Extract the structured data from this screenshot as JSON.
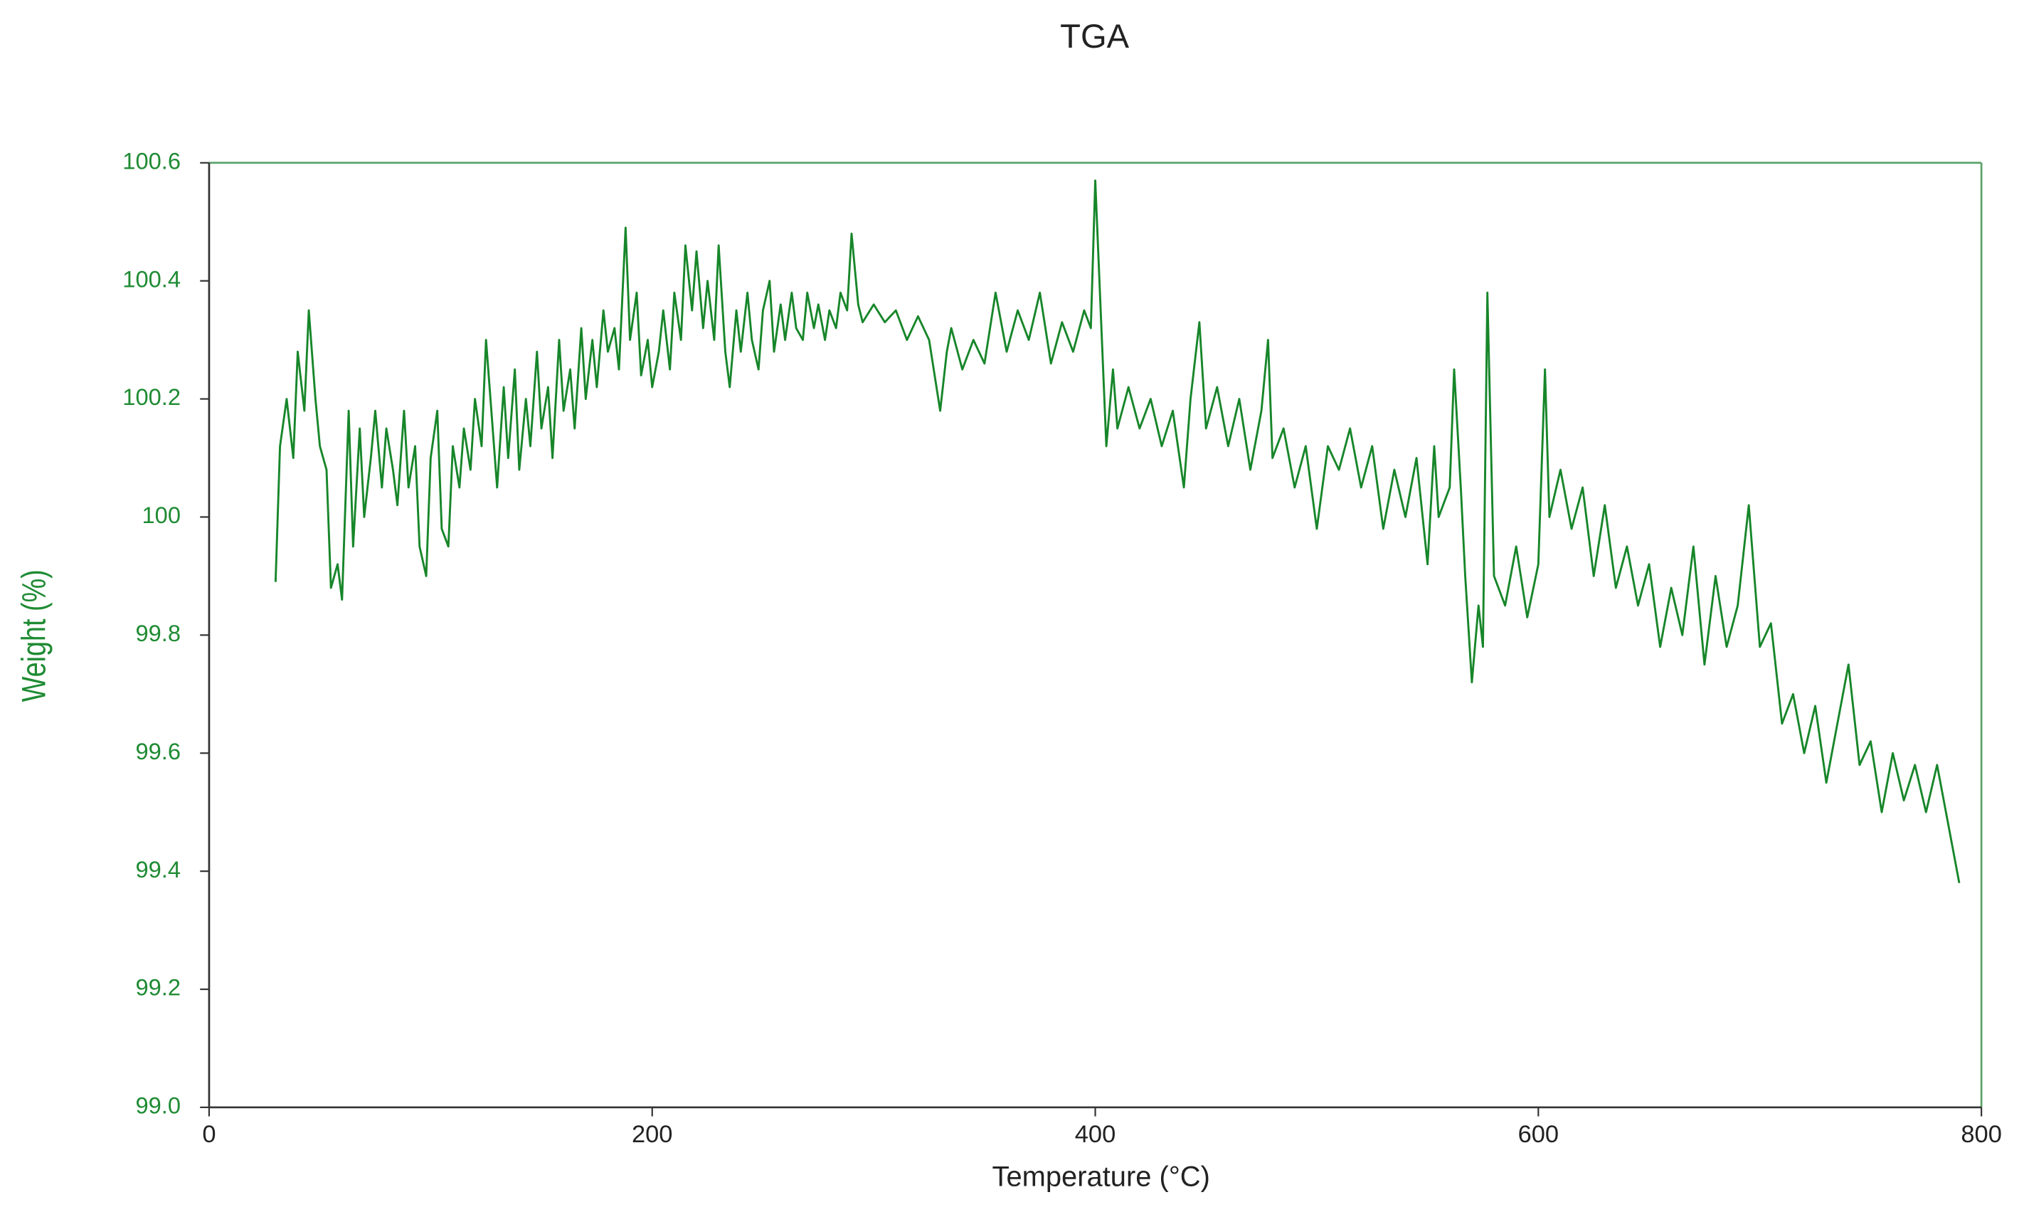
{
  "chart_data": {
    "type": "line",
    "title": "TGA",
    "xlabel": "Temperature (°C)",
    "ylabel": "Weight (%)",
    "xlim": [
      0,
      800
    ],
    "ylim": [
      99,
      100.6
    ],
    "xticks": [
      0,
      200,
      400,
      600,
      800
    ],
    "yticks": [
      {
        "value": 99,
        "label": "99.0"
      },
      99.2,
      99.4,
      99.6,
      99.8,
      100,
      100.2,
      100.4,
      100.6
    ],
    "series": [
      {
        "color": "#17862a",
        "x": [
          30,
          32,
          35,
          38,
          40,
          43,
          45,
          48,
          50,
          53,
          55,
          58,
          60,
          63,
          65,
          68,
          70,
          73,
          75,
          78,
          80,
          83,
          85,
          88,
          90,
          93,
          95,
          98,
          100,
          103,
          105,
          108,
          110,
          113,
          115,
          118,
          120,
          123,
          125,
          128,
          130,
          133,
          135,
          138,
          140,
          143,
          145,
          148,
          150,
          153,
          155,
          158,
          160,
          163,
          165,
          168,
          170,
          173,
          175,
          178,
          180,
          183,
          185,
          188,
          190,
          193,
          195,
          198,
          200,
          203,
          205,
          208,
          210,
          213,
          215,
          218,
          220,
          223,
          225,
          228,
          230,
          233,
          235,
          238,
          240,
          243,
          245,
          248,
          250,
          253,
          255,
          258,
          260,
          263,
          265,
          268,
          270,
          273,
          275,
          278,
          280,
          283,
          285,
          288,
          290,
          293,
          295,
          300,
          305,
          310,
          315,
          320,
          325,
          330,
          333,
          335,
          340,
          345,
          350,
          355,
          360,
          365,
          370,
          375,
          380,
          385,
          390,
          395,
          398,
          400,
          403,
          405,
          408,
          410,
          415,
          420,
          425,
          430,
          435,
          440,
          443,
          447,
          450,
          455,
          460,
          465,
          470,
          475,
          478,
          480,
          485,
          490,
          495,
          500,
          505,
          510,
          515,
          520,
          525,
          530,
          535,
          540,
          545,
          550,
          553,
          555,
          560,
          562,
          565,
          567,
          570,
          573,
          575,
          577,
          580,
          585,
          590,
          595,
          600,
          603,
          605,
          610,
          615,
          620,
          625,
          630,
          635,
          640,
          645,
          650,
          655,
          660,
          665,
          670,
          675,
          680,
          685,
          690,
          695,
          700,
          705,
          710,
          715,
          720,
          725,
          730,
          735,
          740,
          745,
          750,
          755,
          760,
          765,
          770,
          775,
          780,
          785,
          790
        ],
        "values": [
          99.89,
          100.12,
          100.2,
          100.1,
          100.28,
          100.18,
          100.35,
          100.2,
          100.12,
          100.08,
          99.88,
          99.92,
          99.86,
          100.18,
          99.95,
          100.15,
          100.0,
          100.1,
          100.18,
          100.05,
          100.15,
          100.08,
          100.02,
          100.18,
          100.05,
          100.12,
          99.95,
          99.9,
          100.1,
          100.18,
          99.98,
          99.95,
          100.12,
          100.05,
          100.15,
          100.08,
          100.2,
          100.12,
          100.3,
          100.15,
          100.05,
          100.22,
          100.1,
          100.25,
          100.08,
          100.2,
          100.12,
          100.28,
          100.15,
          100.22,
          100.1,
          100.3,
          100.18,
          100.25,
          100.15,
          100.32,
          100.2,
          100.3,
          100.22,
          100.35,
          100.28,
          100.32,
          100.25,
          100.49,
          100.3,
          100.38,
          100.24,
          100.3,
          100.22,
          100.28,
          100.35,
          100.25,
          100.38,
          100.3,
          100.46,
          100.35,
          100.45,
          100.32,
          100.4,
          100.3,
          100.46,
          100.28,
          100.22,
          100.35,
          100.28,
          100.38,
          100.3,
          100.25,
          100.35,
          100.4,
          100.28,
          100.36,
          100.3,
          100.38,
          100.32,
          100.3,
          100.38,
          100.32,
          100.36,
          100.3,
          100.35,
          100.32,
          100.38,
          100.35,
          100.48,
          100.36,
          100.33,
          100.36,
          100.33,
          100.35,
          100.3,
          100.34,
          100.3,
          100.18,
          100.28,
          100.32,
          100.25,
          100.3,
          100.26,
          100.38,
          100.28,
          100.35,
          100.3,
          100.38,
          100.26,
          100.33,
          100.28,
          100.35,
          100.32,
          100.57,
          100.3,
          100.12,
          100.25,
          100.15,
          100.22,
          100.15,
          100.2,
          100.12,
          100.18,
          100.05,
          100.2,
          100.33,
          100.15,
          100.22,
          100.12,
          100.2,
          100.08,
          100.18,
          100.3,
          100.1,
          100.15,
          100.05,
          100.12,
          99.98,
          100.12,
          100.08,
          100.15,
          100.05,
          100.12,
          99.98,
          100.08,
          100.0,
          100.1,
          99.92,
          100.12,
          100.0,
          100.05,
          100.25,
          100.05,
          99.9,
          99.72,
          99.85,
          99.78,
          100.38,
          99.9,
          99.85,
          99.95,
          99.83,
          99.92,
          100.25,
          100.0,
          100.08,
          99.98,
          100.05,
          99.9,
          100.02,
          99.88,
          99.95,
          99.85,
          99.92,
          99.78,
          99.88,
          99.8,
          99.95,
          99.75,
          99.9,
          99.78,
          99.85,
          100.02,
          99.78,
          99.82,
          99.65,
          99.7,
          99.6,
          99.68,
          99.55,
          99.65,
          99.75,
          99.58,
          99.62,
          99.5,
          99.6,
          99.52,
          99.58,
          99.5,
          99.58,
          99.48,
          99.38
        ]
      }
    ]
  }
}
